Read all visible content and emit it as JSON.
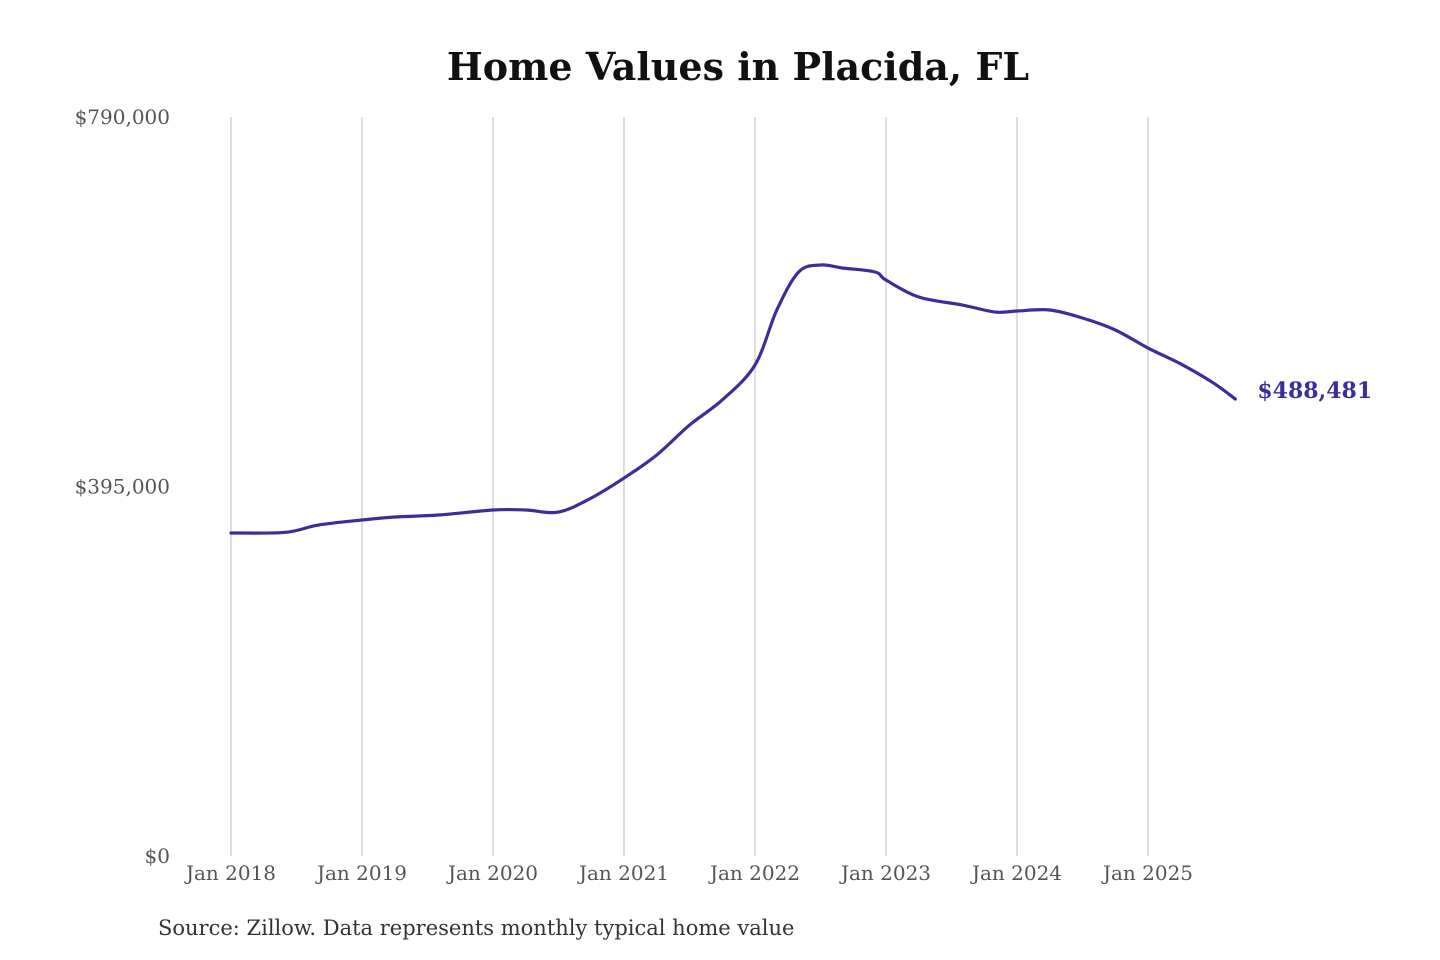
{
  "chart_data": {
    "type": "line",
    "title": "Home Values in Placida, FL",
    "source": "Source: Zillow. Data represents monthly typical home value",
    "xlabel": "",
    "ylabel": "",
    "ylim": [
      0,
      790000
    ],
    "y_ticks": [
      0,
      395000,
      790000
    ],
    "y_tick_labels": [
      "$0",
      "$395,000",
      "$790,000"
    ],
    "x_ticks": [
      "2018-01",
      "2019-01",
      "2020-01",
      "2021-01",
      "2022-01",
      "2023-01",
      "2024-01",
      "2025-01"
    ],
    "x_tick_labels": [
      "Jan 2018",
      "Jan 2019",
      "Jan 2020",
      "Jan 2021",
      "Jan 2022",
      "Jan 2023",
      "Jan 2024",
      "Jan 2025"
    ],
    "grid": "vertical",
    "line_color": "#3a2f9a",
    "end_label": "$488,481",
    "series": [
      {
        "x": [
          "2018-01",
          "2018-06",
          "2018-09",
          "2019-01",
          "2019-04",
          "2019-08",
          "2020-01",
          "2020-04",
          "2020-07",
          "2020-10",
          "2021-01",
          "2021-04",
          "2021-07",
          "2021-10",
          "2022-01",
          "2022-03",
          "2022-05",
          "2022-07",
          "2022-09",
          "2022-12",
          "2023-01",
          "2023-04",
          "2023-08",
          "2023-11",
          "2024-01",
          "2024-04",
          "2024-07",
          "2024-10",
          "2025-01",
          "2025-04",
          "2025-07",
          "2025-09"
        ],
        "y": [
          345300,
          346000,
          353800,
          359200,
          362400,
          364500,
          369900,
          369900,
          367700,
          382700,
          404000,
          428700,
          460700,
          487500,
          524900,
          583700,
          624300,
          631800,
          628600,
          624300,
          615700,
          597600,
          589000,
          581500,
          582600,
          583700,
          575100,
          562300,
          543000,
          526000,
          505600,
          488481
        ]
      }
    ]
  }
}
